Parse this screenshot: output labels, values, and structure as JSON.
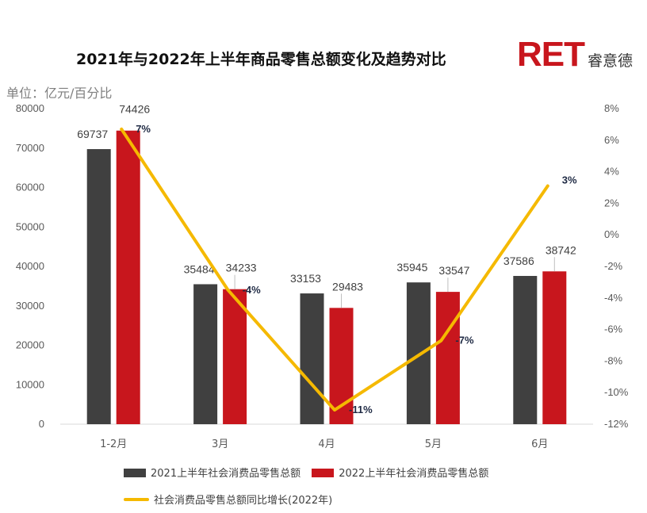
{
  "title": "2021年与2022年上半年商品零售总额变化及趋势对比",
  "brand": {
    "mark": "RET",
    "name": "睿意德"
  },
  "unit_label": "单位：亿元/百分比",
  "chart_data": {
    "type": "bar",
    "categories": [
      "1-2月",
      "3月",
      "4月",
      "5月",
      "6月"
    ],
    "series": [
      {
        "name": "2021上半年社会消费品零售总额",
        "kind": "bar",
        "color": "#404040",
        "values": [
          69737,
          35484,
          33153,
          35945,
          37586
        ]
      },
      {
        "name": "2022上半年社会消费品零售总额",
        "kind": "bar",
        "color": "#c8161d",
        "values": [
          74426,
          34233,
          29483,
          33547,
          38742
        ]
      },
      {
        "name": "社会消费品零售总额同比增长(2022年)",
        "kind": "line",
        "axis": "right",
        "color": "#f5b900",
        "values": [
          6.7,
          -3.5,
          -11.1,
          -6.7,
          3.1
        ],
        "labels": [
          "7%",
          "-4%",
          "-11%",
          "-7%",
          "3%"
        ]
      }
    ],
    "ylim": [
      0,
      80000
    ],
    "yticks": [
      "0",
      "10000",
      "20000",
      "30000",
      "40000",
      "50000",
      "60000",
      "70000",
      "80000"
    ],
    "y2lim": [
      -12,
      8
    ],
    "y2ticks": [
      "-12%",
      "-10%",
      "-8%",
      "-6%",
      "-4%",
      "-2%",
      "0%",
      "2%",
      "4%",
      "6%",
      "8%"
    ],
    "grid": false,
    "legend_position": "bottom"
  }
}
